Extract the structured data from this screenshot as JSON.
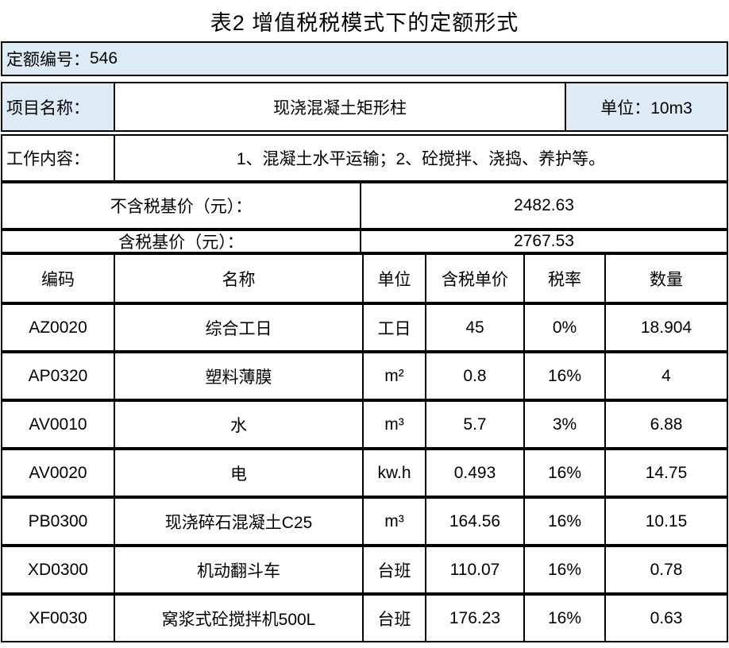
{
  "title": "表2 增值税税模式下的定额形式",
  "colors": {
    "highlight_blue": "#DDEBF7",
    "border": "#000000",
    "background": "#FFFFFF"
  },
  "quota_number": {
    "label": "定额编号：",
    "value": "546"
  },
  "project": {
    "label": "项目名称：",
    "name": "现浇混凝土矩形柱",
    "unit_label": "单位：10m3"
  },
  "work_content": {
    "label": "工作内容：",
    "content": "1、混凝土水平运输；2、砼搅拌、浇捣、养护等。"
  },
  "base_prices": [
    {
      "label": "不含税基价（元）：",
      "value": "2482.63"
    },
    {
      "label": "含税基价（元）：",
      "value": "2767.53"
    }
  ],
  "items_table": {
    "headers": [
      "编码",
      "名称",
      "单位",
      "含税单价",
      "税率",
      "数量"
    ],
    "rows": [
      [
        "AZ0020",
        "综合工日",
        "工日",
        "45",
        "0%",
        "18.904"
      ],
      [
        "AP0320",
        "塑料薄膜",
        "m²",
        "0.8",
        "16%",
        "4"
      ],
      [
        "AV0010",
        "水",
        "m³",
        "5.7",
        "3%",
        "6.88"
      ],
      [
        "AV0020",
        "电",
        "kw.h",
        "0.493",
        "16%",
        "14.75"
      ],
      [
        "PB0300",
        "现浇碎石混凝土C25",
        "m³",
        "164.56",
        "16%",
        "10.15"
      ],
      [
        "XD0300",
        "机动翻斗车",
        "台班",
        "110.07",
        "16%",
        "0.78"
      ],
      [
        "XF0030",
        "窝浆式砼搅拌机500L",
        "台班",
        "176.23",
        "16%",
        "0.63"
      ]
    ]
  }
}
